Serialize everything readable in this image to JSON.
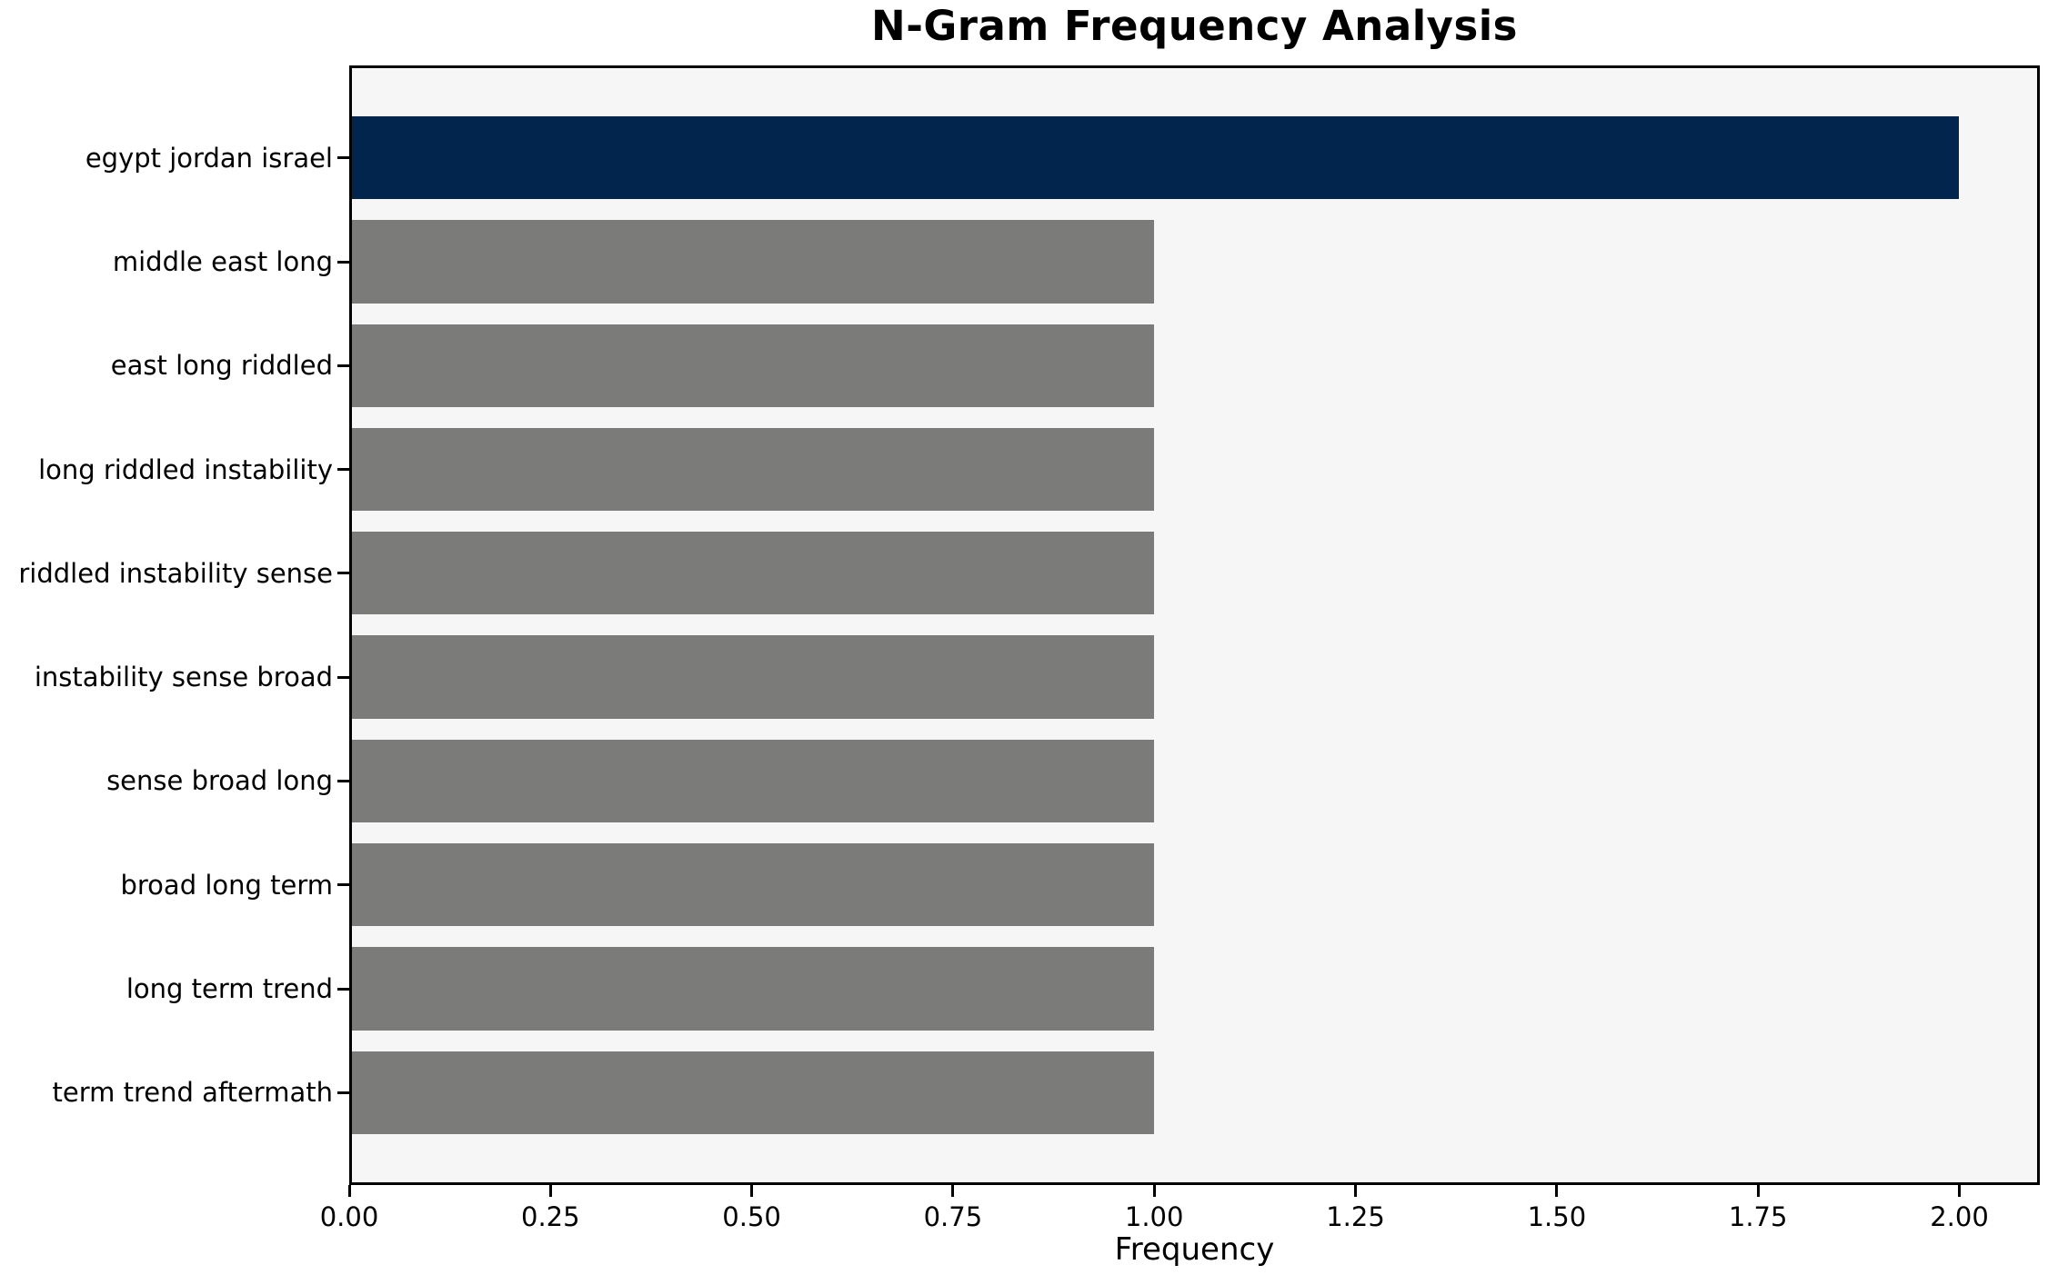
{
  "chart_data": {
    "type": "bar",
    "orientation": "horizontal",
    "title": "N-Gram Frequency Analysis",
    "xlabel": "Frequency",
    "ylabel": "",
    "categories": [
      "egypt jordan israel",
      "middle east long",
      "east long riddled",
      "long riddled instability",
      "riddled instability sense",
      "instability sense broad",
      "sense broad long",
      "broad long term",
      "long term trend",
      "term trend aftermath"
    ],
    "values": [
      2,
      1,
      1,
      1,
      1,
      1,
      1,
      1,
      1,
      1
    ],
    "xlim": [
      0,
      2.1
    ],
    "xticks": [
      0,
      0.25,
      0.5,
      0.75,
      1.0,
      1.25,
      1.5,
      1.75,
      2.0
    ],
    "xtick_labels": [
      "0.00",
      "0.25",
      "0.50",
      "0.75",
      "1.00",
      "1.25",
      "1.50",
      "1.75",
      "2.00"
    ],
    "grid": false,
    "highlight_index": 0,
    "colors": {
      "highlight_bar": "#02254e",
      "default_bar": "#7b7b79",
      "plot_background": "#f6f6f6",
      "figure_background": "#ffffff",
      "axis": "#000000"
    }
  }
}
